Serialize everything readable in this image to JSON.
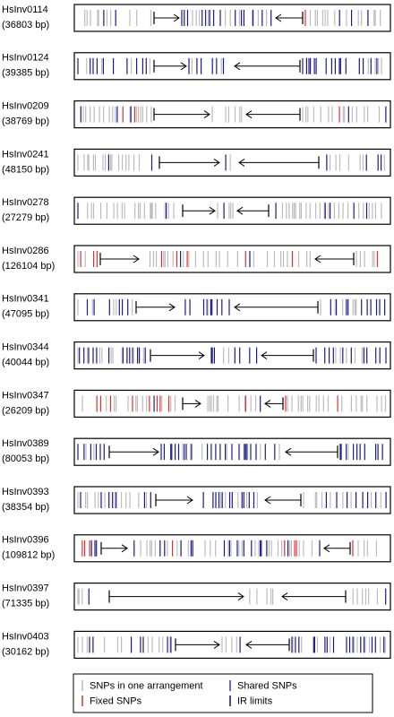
{
  "rows": [
    {
      "name": "HsInv0114",
      "length": "(36803 bp)"
    },
    {
      "name": "HsInv0124",
      "length": "(39385 bp)"
    },
    {
      "name": "HsInv0209",
      "length": "(38769 bp)"
    },
    {
      "name": "HsInv0241",
      "length": "(48150 bp)"
    },
    {
      "name": "HsInv0278",
      "length": "(27279 bp)"
    },
    {
      "name": "HsInv0286",
      "length": "(126104 bp)"
    },
    {
      "name": "HsInv0341",
      "length": "(47095 bp)"
    },
    {
      "name": "HsInv0344",
      "length": "(40044 bp)"
    },
    {
      "name": "HsInv0347",
      "length": "(26209 bp)"
    },
    {
      "name": "HsInv0389",
      "length": "(80053 bp)"
    },
    {
      "name": "HsInv0393",
      "length": "(38354 bp)"
    },
    {
      "name": "HsInv0396",
      "length": "(109812 bp)"
    },
    {
      "name": "HsInv0397",
      "length": "(71335 bp)"
    },
    {
      "name": "HsInv0403",
      "length": "(30162 bp)"
    }
  ],
  "legend": {
    "one_arrangement": "SNPs in one arrangement",
    "shared": "Shared SNPs",
    "fixed": "Fixed SNPs",
    "ir_limits": "IR limits"
  }
}
